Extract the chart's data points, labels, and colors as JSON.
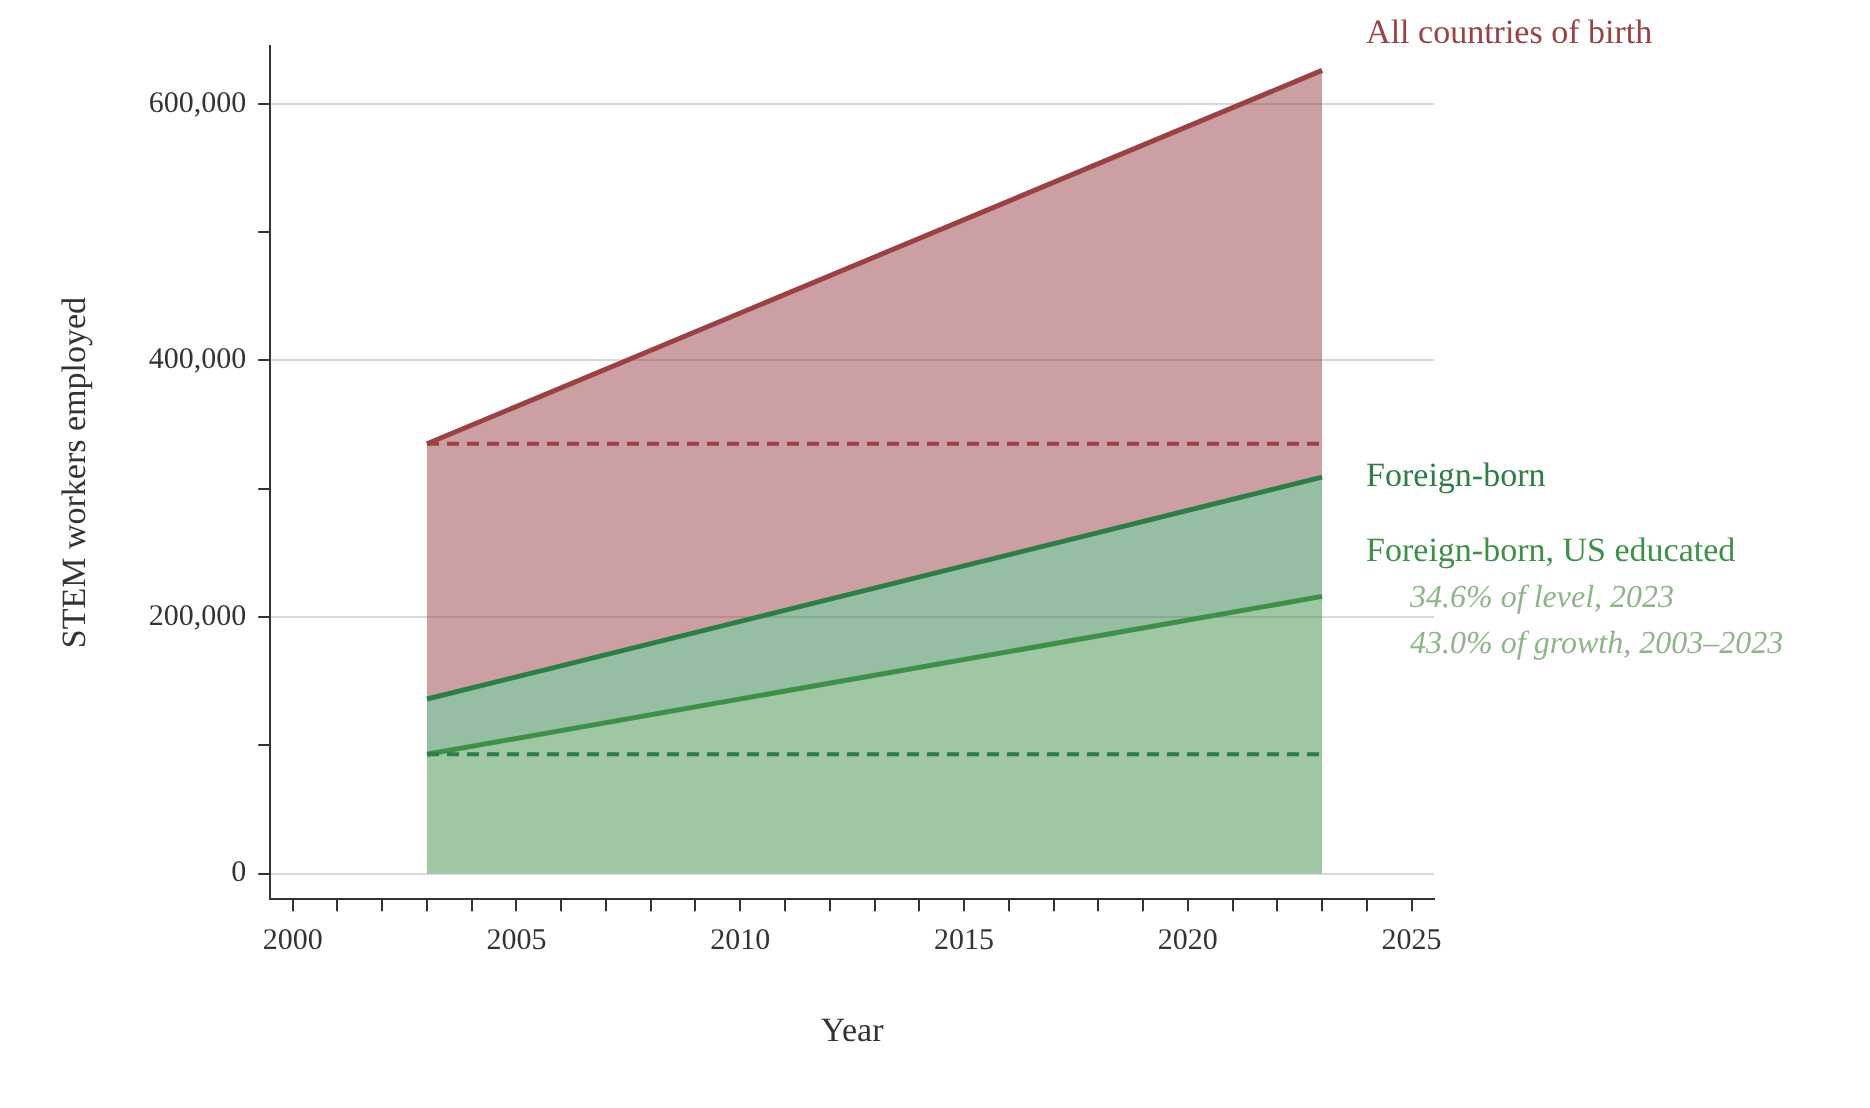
{
  "chart_data": {
    "type": "area",
    "xlabel": "Year",
    "ylabel": "STEM workers employed",
    "x": [
      2003,
      2023
    ],
    "series": [
      {
        "name": "All countries of birth",
        "color": "#994145",
        "values": [
          335000,
          626000
        ]
      },
      {
        "name": "Foreign-born",
        "color": "#2e7d46",
        "values": [
          136000,
          309000
        ]
      },
      {
        "name": "Foreign-born, US educated",
        "color": "#3f8f48",
        "values": [
          93000,
          216000
        ]
      },
      {
        "type": "line",
        "line_style": "dashed",
        "color": "#994145",
        "values": [
          335000,
          335000
        ]
      },
      {
        "type": "line",
        "line_style": "dashed",
        "color": "#2e7d46",
        "values": [
          93000,
          93000
        ]
      }
    ],
    "annotations": [
      "34.6% of level, 2023",
      "43.0% of growth, 2003–2023"
    ],
    "xlim": [
      1999.5,
      2025.5
    ],
    "xticks": [
      2000,
      {
        "value": 2001,
        "label": null
      },
      {
        "value": 2002,
        "label": null
      },
      {
        "value": 2003,
        "label": null
      },
      {
        "value": 2004,
        "label": null
      },
      2005,
      {
        "value": 2006,
        "label": null
      },
      {
        "value": 2007,
        "label": null
      },
      {
        "value": 2008,
        "label": null
      },
      {
        "value": 2009,
        "label": null
      },
      2010,
      {
        "value": 2011,
        "label": null
      },
      {
        "value": 2012,
        "label": null
      },
      {
        "value": 2013,
        "label": null
      },
      {
        "value": 2014,
        "label": null
      },
      2015,
      {
        "value": 2016,
        "label": null
      },
      {
        "value": 2017,
        "label": null
      },
      {
        "value": 2018,
        "label": null
      },
      {
        "value": 2019,
        "label": null
      },
      2020,
      {
        "value": 2021,
        "label": null
      },
      {
        "value": 2022,
        "label": null
      },
      {
        "value": 2023,
        "label": null
      },
      {
        "value": 2024,
        "label": null
      },
      2025
    ],
    "ylim": [
      -20000,
      645000
    ],
    "yticks": [
      0,
      {
        "value": 100000,
        "label": null
      },
      {
        "value": 200000,
        "label": "200,000"
      },
      {
        "value": 300000,
        "label": null
      },
      {
        "value": 400000,
        "label": "400,000"
      },
      {
        "value": 500000,
        "label": null
      },
      {
        "value": 600000,
        "label": "600,000"
      }
    ],
    "grid": "y",
    "legend": false,
    "marker": "none"
  }
}
